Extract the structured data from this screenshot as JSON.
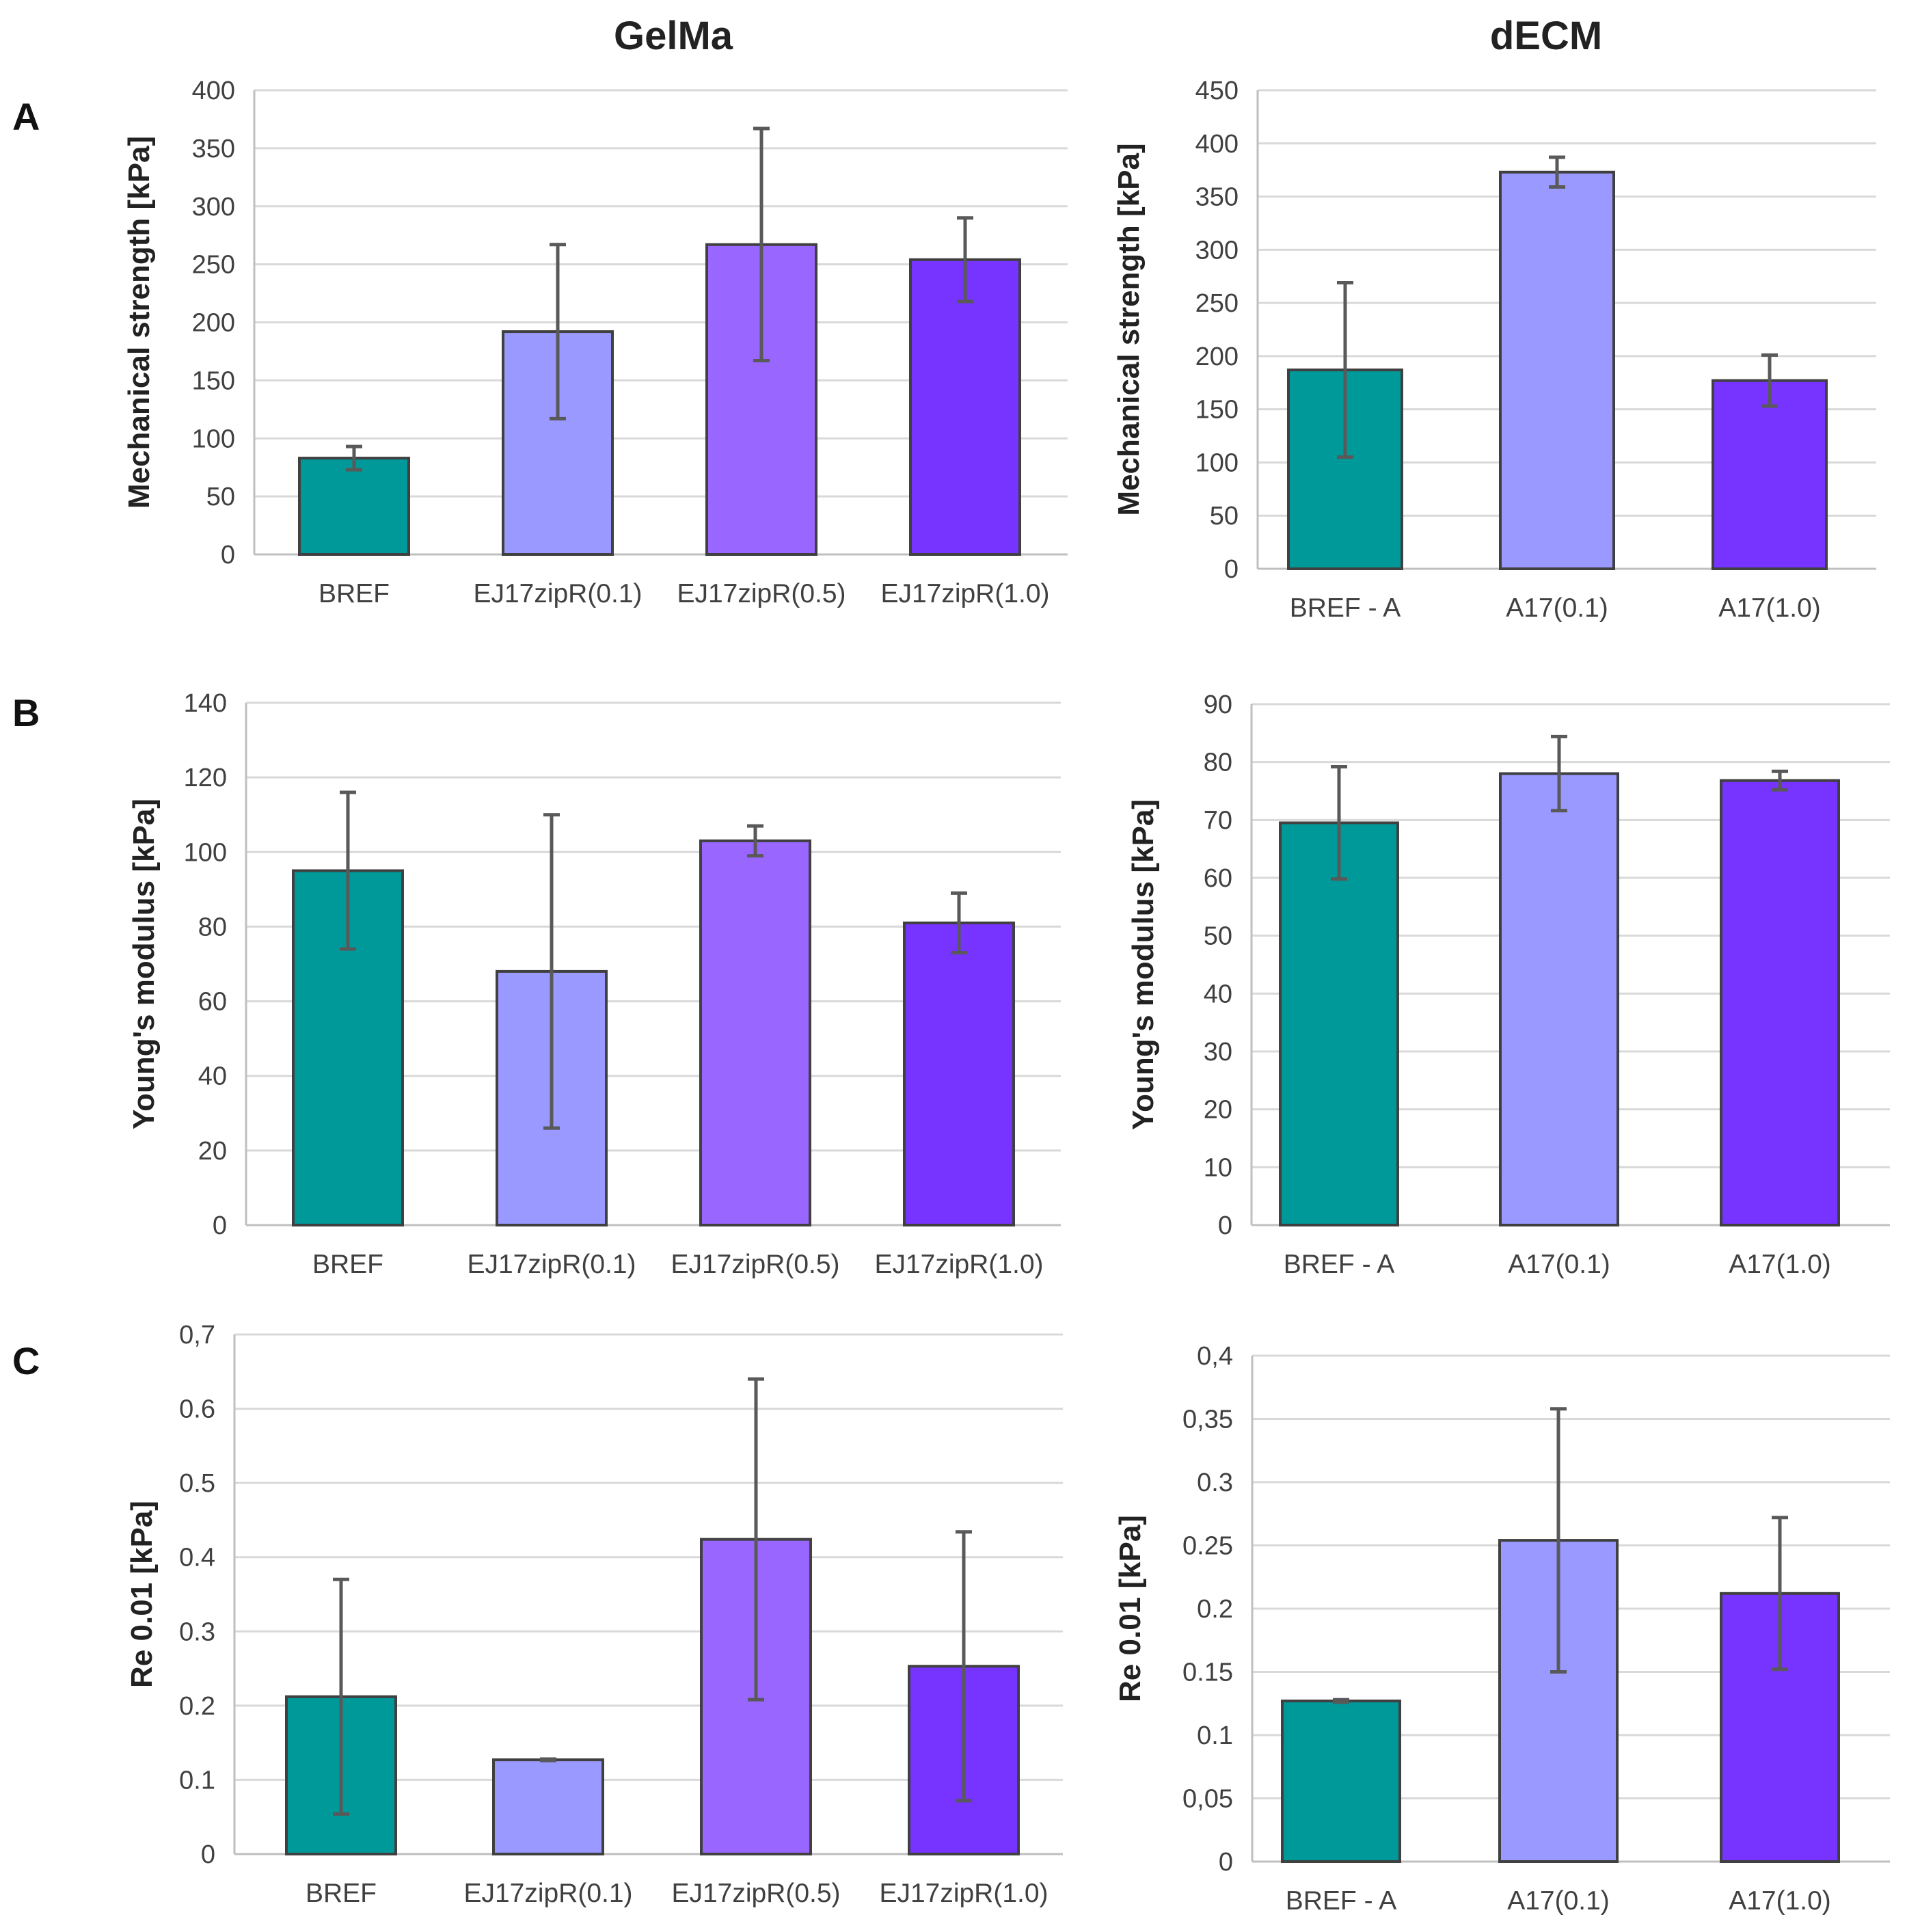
{
  "columns": {
    "left": "GelMa",
    "right": "dECM"
  },
  "rows": [
    "A",
    "B",
    "C"
  ],
  "colors": {
    "BREF": "#009999",
    "low": "#9999ff",
    "mid": "#9966ff",
    "high": "#7733ff"
  },
  "chart_data": [
    {
      "id": "gelma-A",
      "type": "bar",
      "title": "GelMa",
      "row": "A",
      "ylabel": "Mechanical strength [kPa]",
      "xlabel": "",
      "categories": [
        "BREF",
        "EJ17zipR(0.1)",
        "EJ17zipR(0.5)",
        "EJ17zipR(1.0)"
      ],
      "values": [
        83,
        192,
        267,
        254
      ],
      "errors": [
        10,
        75,
        100,
        36
      ],
      "ylim": [
        0,
        400
      ],
      "yticks": [
        "0",
        "50",
        "100",
        "150",
        "200",
        "250",
        "300",
        "350",
        "400"
      ],
      "grid": true
    },
    {
      "id": "decm-A",
      "type": "bar",
      "title": "dECM",
      "row": "A",
      "ylabel": "Mechanical strength [kPa]",
      "xlabel": "",
      "categories": [
        "BREF - A",
        "A17(0.1)",
        "A17(1.0)"
      ],
      "values": [
        187,
        373,
        177
      ],
      "errors": [
        82,
        14,
        24
      ],
      "ylim": [
        0,
        450
      ],
      "yticks": [
        "0",
        "50",
        "100",
        "150",
        "200",
        "250",
        "300",
        "350",
        "400",
        "450"
      ],
      "grid": true
    },
    {
      "id": "gelma-B",
      "type": "bar",
      "title": "GelMa",
      "row": "B",
      "ylabel": "Young's modulus [kPa]",
      "xlabel": "",
      "categories": [
        "BREF",
        "EJ17zipR(0.1)",
        "EJ17zipR(0.5)",
        "EJ17zipR(1.0)"
      ],
      "values": [
        95,
        68,
        103,
        81
      ],
      "errors": [
        21,
        42,
        4,
        8
      ],
      "ylim": [
        0,
        140
      ],
      "yticks": [
        "0",
        "20",
        "40",
        "60",
        "80",
        "100",
        "120",
        "140"
      ],
      "grid": true
    },
    {
      "id": "decm-B",
      "type": "bar",
      "title": "dECM",
      "row": "B",
      "ylabel": "Young's modulus [kPa]",
      "xlabel": "",
      "categories": [
        "BREF - A",
        "A17(0.1)",
        "A17(1.0)"
      ],
      "values": [
        69.5,
        78,
        76.8
      ],
      "errors": [
        9.7,
        6.4,
        1.6
      ],
      "ylim": [
        0,
        90
      ],
      "yticks": [
        "0",
        "10",
        "20",
        "30",
        "40",
        "50",
        "60",
        "70",
        "80",
        "90"
      ],
      "grid": true
    },
    {
      "id": "gelma-C",
      "type": "bar",
      "title": "GelMa",
      "row": "C",
      "ylabel": "Re 0.01 [kPa]",
      "xlabel": "",
      "categories": [
        "BREF",
        "EJ17zipR(0.1)",
        "EJ17zipR(0.5)",
        "EJ17zipR(1.0)"
      ],
      "values": [
        0.212,
        0.127,
        0.424,
        0.253
      ],
      "errors": [
        0.158,
        0.001,
        0.216,
        0.181
      ],
      "ylim": [
        0,
        0.7
      ],
      "yticks": [
        "0",
        "0.1",
        "0.2",
        "0.3",
        "0.4",
        "0.5",
        "0.6",
        "0,7"
      ],
      "grid": true
    },
    {
      "id": "decm-C",
      "type": "bar",
      "title": "dECM",
      "row": "C",
      "ylabel": "Re 0.01 [kPa]",
      "xlabel": "",
      "categories": [
        "BREF - A",
        "A17(0.1)",
        "A17(1.0)"
      ],
      "values": [
        0.127,
        0.254,
        0.212
      ],
      "errors": [
        0.001,
        0.104,
        0.06
      ],
      "ylim": [
        0,
        0.4
      ],
      "yticks": [
        "0",
        "0,05",
        "0.1",
        "0.15",
        "0.2",
        "0.25",
        "0.3",
        "0,35",
        "0,4"
      ],
      "grid": true
    }
  ]
}
